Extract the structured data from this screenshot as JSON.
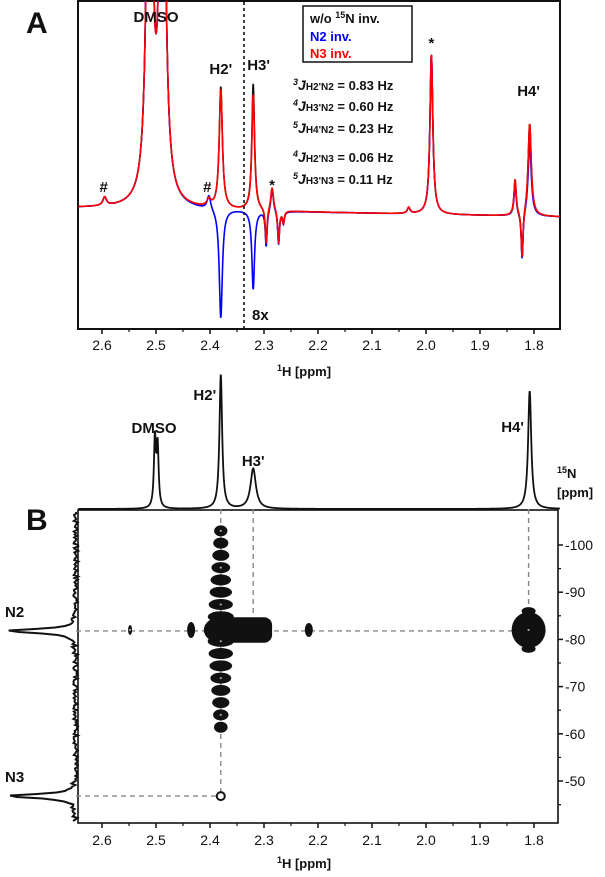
{
  "chart_data": [
    {
      "panel": "A",
      "type": "line",
      "xlabel": {
        "sup": "1",
        "text": "H [ppm]"
      },
      "xlim": [
        2.644,
        1.752
      ],
      "x_ticks": [
        "2.6",
        "2.5",
        "2.4",
        "2.3",
        "2.2",
        "2.1",
        "2.0",
        "1.9",
        "1.8"
      ],
      "ylim": [
        -1.01,
        1.75
      ],
      "legend": {
        "placement": "top-center",
        "items": [
          {
            "pre": "w/o ",
            "sup": "15",
            "rest": "N inv.",
            "color": "#111111"
          },
          {
            "pre": "N2 inv.",
            "sup": "",
            "rest": "",
            "color": "#0000ff"
          },
          {
            "pre": "N3 inv.",
            "sup": "",
            "rest": "",
            "color": "#ff0000"
          }
        ]
      },
      "series": [
        {
          "name": "w/o 15N inv.",
          "color": "#111111",
          "peaks": [
            [
              2.595,
              0.07,
              0.004
            ],
            [
              2.512,
              5,
              0.005
            ],
            [
              2.488,
              5,
              0.005
            ],
            [
              2.402,
              0.06,
              0.004
            ],
            [
              2.38,
              1.02,
              0.0035
            ],
            [
              2.32,
              1.06,
              0.003
            ],
            [
              2.285,
              0.2,
              0.003
            ],
            [
              2.296,
              -0.3,
              0.002
            ],
            [
              2.273,
              -0.28,
              0.002
            ],
            [
              2.264,
              -0.1,
              0.002
            ],
            [
              2.032,
              0.05,
              0.003
            ],
            [
              1.99,
              1.34,
              0.0032
            ],
            [
              1.835,
              0.3,
              0.0025
            ],
            [
              1.822,
              -0.4,
              0.002
            ],
            [
              1.808,
              0.78,
              0.0035
            ]
          ]
        },
        {
          "name": "N2 inv.",
          "color": "#0000ff",
          "peaks": [
            [
              2.595,
              0.07,
              0.004
            ],
            [
              2.512,
              5,
              0.005
            ],
            [
              2.488,
              5,
              0.005
            ],
            [
              2.402,
              0.12,
              0.004
            ],
            [
              2.38,
              -0.92,
              0.0035
            ],
            [
              2.32,
              -0.66,
              0.003
            ],
            [
              2.285,
              0.2,
              0.003
            ],
            [
              2.296,
              -0.3,
              0.002
            ],
            [
              2.273,
              -0.28,
              0.002
            ],
            [
              2.264,
              -0.1,
              0.002
            ],
            [
              2.032,
              0.05,
              0.003
            ],
            [
              1.99,
              1.34,
              0.0032
            ],
            [
              1.835,
              0.26,
              0.0025
            ],
            [
              1.822,
              -0.4,
              0.002
            ],
            [
              1.808,
              0.62,
              0.0035
            ]
          ]
        },
        {
          "name": "N3 inv.",
          "color": "#ff0000",
          "peaks": [
            [
              2.595,
              0.07,
              0.004
            ],
            [
              2.512,
              5,
              0.005
            ],
            [
              2.488,
              5,
              0.005
            ],
            [
              2.402,
              0.06,
              0.004
            ],
            [
              2.38,
              1.0,
              0.0035
            ],
            [
              2.32,
              0.97,
              0.003
            ],
            [
              2.285,
              0.2,
              0.003
            ],
            [
              2.296,
              -0.3,
              0.002
            ],
            [
              2.273,
              -0.28,
              0.002
            ],
            [
              2.264,
              -0.1,
              0.002
            ],
            [
              2.032,
              0.05,
              0.003
            ],
            [
              1.99,
              1.34,
              0.0032
            ],
            [
              1.835,
              0.3,
              0.0025
            ],
            [
              1.822,
              -0.4,
              0.002
            ],
            [
              1.808,
              0.78,
              0.0035
            ]
          ]
        }
      ],
      "divider_ppm": 2.337,
      "divider_note": "8x",
      "annotations": [
        {
          "text": "DMSO",
          "ppm": 2.5
        },
        {
          "text": "H2'",
          "ppm": 2.38
        },
        {
          "text": "H3'",
          "ppm": 2.31
        },
        {
          "text": "H4'",
          "ppm": 1.81
        },
        {
          "text": "#",
          "ppm": 2.597
        },
        {
          "text": "#",
          "ppm": 2.405
        },
        {
          "text": "*",
          "ppm": 2.285
        },
        {
          "text": "*",
          "ppm": 1.99
        }
      ],
      "couplings": [
        {
          "sup": "3",
          "sub": "H2'N2",
          "value": " = 0.83 Hz"
        },
        {
          "sup": "4",
          "sub": "H3'N2",
          "value": " = 0.60 Hz"
        },
        {
          "sup": "5",
          "sub": "H4'N2",
          "value": " = 0.23 Hz"
        },
        {
          "sup": "4",
          "sub": "H2'N3",
          "value": " = 0.06 Hz"
        },
        {
          "sup": "5",
          "sub": "H3'N3",
          "value": " = 0.11 Hz"
        }
      ]
    },
    {
      "panel": "B",
      "type": "heatmap",
      "xlabel": {
        "sup": "1",
        "text": "H [ppm]"
      },
      "ylabel": {
        "sup": "15",
        "text": "N",
        "line2": "[ppm]"
      },
      "xlim": [
        2.644,
        1.752
      ],
      "ylim": [
        -107,
        -41
      ],
      "x_ticks": [
        "2.6",
        "2.5",
        "2.4",
        "2.3",
        "2.2",
        "2.1",
        "2.0",
        "1.9",
        "1.8"
      ],
      "y_ticks": [
        -100,
        -90,
        -80,
        -70,
        -60,
        -50
      ],
      "projection_1H": {
        "peaks": [
          [
            2.502,
            0.51,
            0.0022
          ],
          [
            2.497,
            0.45,
            0.0022
          ],
          [
            2.38,
            1.0,
            0.003
          ],
          [
            2.32,
            0.3,
            0.006
          ],
          [
            1.808,
            0.88,
            0.0035
          ]
        ],
        "labels": [
          {
            "text": "DMSO",
            "ppm": 2.5
          },
          {
            "text": "H2'",
            "ppm": 2.38
          },
          {
            "text": "H3'",
            "ppm": 2.32
          },
          {
            "text": "H4'",
            "ppm": 1.81
          }
        ]
      },
      "projection_15N": {
        "peaks": [
          {
            "label": "N2",
            "ppm": -81.8
          },
          {
            "label": "N3",
            "ppm": -46.8
          }
        ]
      },
      "cross_peaks": [
        {
          "h": 2.38,
          "n": -81.8,
          "label": "H2'-N2"
        },
        {
          "h": 2.32,
          "n": -81.8,
          "label": "H3'-N2"
        },
        {
          "h": 1.81,
          "n": -81.8,
          "label": "H4'-N2"
        },
        {
          "h": 2.38,
          "n": -46.8,
          "label": "H2'-N3"
        }
      ],
      "contour_color": "#111111",
      "guide_color": "#888888"
    }
  ]
}
